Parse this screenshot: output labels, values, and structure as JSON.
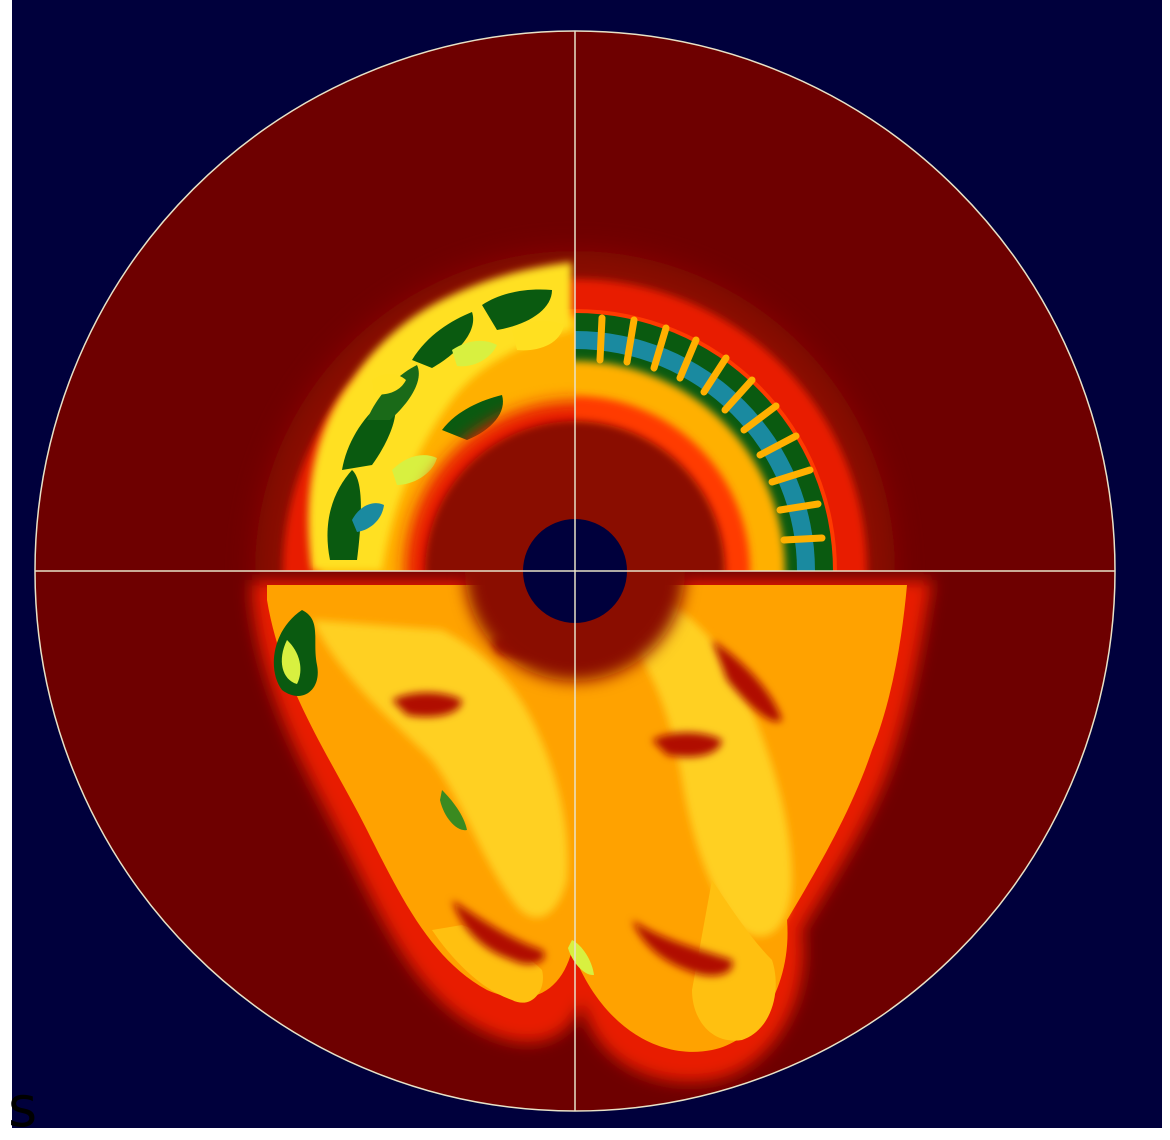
{
  "image": {
    "subject": "",
    "colors": {
      "background": "#00003c",
      "ambient_medium": "#6e0000",
      "shock_shell": "#e81e00",
      "hot_plume": "#ffb000",
      "bright_plume": "#ffee22",
      "cool_filaments": "#0a5a10",
      "coldest_filaments": "#1a8aa0",
      "core": "#00003c",
      "axis_lines": "#e8e2c8"
    }
  },
  "edge_text": "s"
}
